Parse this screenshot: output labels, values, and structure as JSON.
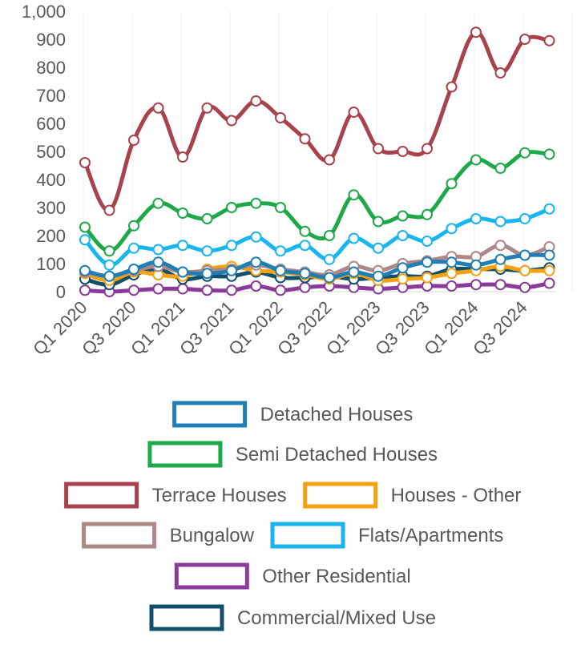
{
  "chart_data": {
    "type": "line",
    "title": "",
    "xlabel": "",
    "ylabel": "",
    "ylim": [
      0,
      1000
    ],
    "yticks": [
      "0",
      "100",
      "200",
      "300",
      "400",
      "500",
      "600",
      "700",
      "800",
      "900",
      "1,000"
    ],
    "xtick_labels": [
      "Q1 2020",
      "Q3 2020",
      "Q1 2021",
      "Q3 2021",
      "Q1 2022",
      "Q3 2022",
      "Q1 2023",
      "Q3 2023",
      "Q1 2024",
      "Q3 2024"
    ],
    "categories": [
      "Q1 2020",
      "Q2 2020",
      "Q3 2020",
      "Q4 2020",
      "Q1 2021",
      "Q2 2021",
      "Q3 2021",
      "Q4 2021",
      "Q1 2022",
      "Q2 2022",
      "Q3 2022",
      "Q4 2022",
      "Q1 2023",
      "Q2 2023",
      "Q3 2023",
      "Q4 2023",
      "Q1 2024",
      "Q2 2024",
      "Q3 2024",
      "Q4 2024"
    ],
    "grid": "vertical",
    "legend_placement": "bottom",
    "series": [
      {
        "name": "Detached Houses",
        "color": "#1f7fb4",
        "values": [
          75,
          55,
          80,
          105,
          70,
          65,
          75,
          105,
          75,
          65,
          50,
          70,
          55,
          85,
          105,
          105,
          95,
          115,
          130,
          130
        ]
      },
      {
        "name": "Semi Detached Houses",
        "color": "#1ea84a",
        "values": [
          230,
          145,
          235,
          315,
          280,
          260,
          300,
          315,
          300,
          215,
          200,
          345,
          250,
          270,
          275,
          385,
          470,
          440,
          495,
          490
        ]
      },
      {
        "name": "Terrace Houses",
        "color": "#a8434e",
        "values": [
          460,
          290,
          540,
          655,
          480,
          655,
          610,
          680,
          620,
          545,
          470,
          640,
          510,
          500,
          510,
          730,
          925,
          780,
          900,
          895
        ]
      },
      {
        "name": "Houses - Other",
        "color": "#f5a211",
        "values": [
          65,
          40,
          70,
          60,
          55,
          80,
          90,
          75,
          70,
          60,
          45,
          65,
          40,
          45,
          50,
          65,
          75,
          90,
          75,
          75
        ]
      },
      {
        "name": "Bungalow",
        "color": "#ad8785",
        "values": [
          70,
          55,
          75,
          90,
          70,
          75,
          80,
          95,
          80,
          70,
          60,
          90,
          75,
          100,
          110,
          125,
          125,
          165,
          130,
          160
        ]
      },
      {
        "name": "Flats/Apartments",
        "color": "#19b5ee",
        "values": [
          185,
          95,
          155,
          150,
          165,
          145,
          165,
          195,
          145,
          165,
          115,
          190,
          155,
          200,
          180,
          225,
          260,
          250,
          260,
          295
        ]
      },
      {
        "name": "Other Residential",
        "color": "#8a3a99",
        "values": [
          5,
          0,
          5,
          10,
          10,
          5,
          5,
          20,
          5,
          15,
          20,
          15,
          10,
          15,
          20,
          20,
          25,
          25,
          15,
          30
        ]
      },
      {
        "name": "Commercial/Mixed Use",
        "color": "#12506b",
        "values": [
          45,
          25,
          60,
          80,
          45,
          55,
          55,
          70,
          50,
          50,
          55,
          45,
          50,
          55,
          55,
          80,
          80,
          80,
          75,
          85
        ]
      }
    ],
    "legend_rows": [
      [
        0
      ],
      [
        1
      ],
      [
        2,
        3
      ],
      [
        4,
        5
      ],
      [
        6
      ],
      [
        7
      ]
    ]
  }
}
